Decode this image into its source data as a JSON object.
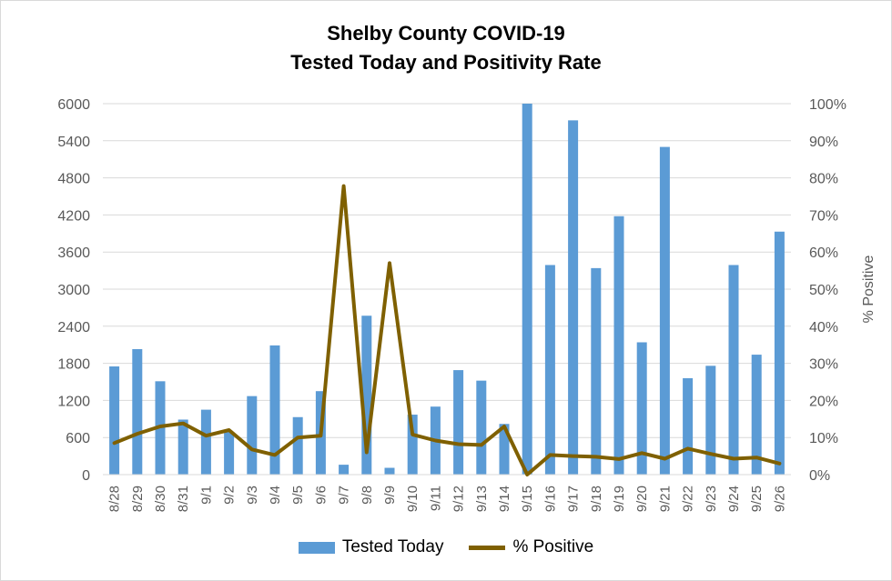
{
  "chart_data": {
    "type": "bar+line",
    "title": "Shelby County COVID-19",
    "subtitle": "Tested Today and Positivity Rate",
    "xlabel": "",
    "ylabel": "",
    "y2label": "% Positive",
    "categories": [
      "8/28",
      "8/29",
      "8/30",
      "8/31",
      "9/1",
      "9/2",
      "9/3",
      "9/4",
      "9/5",
      "9/6",
      "9/7",
      "9/8",
      "9/9",
      "9/10",
      "9/11",
      "9/12",
      "9/13",
      "9/14",
      "9/15",
      "9/16",
      "9/17",
      "9/18",
      "9/19",
      "9/20",
      "9/21",
      "9/22",
      "9/23",
      "9/24",
      "9/25",
      "9/26"
    ],
    "ylim": [
      0,
      6000
    ],
    "yticks": [
      "0",
      "600",
      "1200",
      "1800",
      "2400",
      "3000",
      "3600",
      "4200",
      "4800",
      "5400",
      "6000"
    ],
    "y2lim": [
      0,
      100
    ],
    "y2ticks": [
      "0%",
      "10%",
      "20%",
      "30%",
      "40%",
      "50%",
      "60%",
      "70%",
      "80%",
      "90%",
      "100%"
    ],
    "grid": true,
    "legend_position": "bottom",
    "series": [
      {
        "name": "Tested Today",
        "type": "bar",
        "axis": "left",
        "color": "#5b9bd5",
        "values": [
          1750,
          2030,
          1510,
          890,
          1050,
          690,
          1270,
          2090,
          930,
          1350,
          160,
          2570,
          110,
          970,
          1100,
          1690,
          1520,
          820,
          6000,
          3390,
          5730,
          3340,
          4180,
          2140,
          5300,
          1560,
          1760,
          3390,
          1940,
          3930
        ]
      },
      {
        "name": "% Positive",
        "type": "line",
        "axis": "right",
        "color": "#7f6000",
        "values": [
          8.5,
          11,
          13,
          13.8,
          10.5,
          12,
          6.8,
          5.3,
          10,
          10.5,
          77.8,
          6,
          57,
          10.8,
          9.2,
          8.2,
          8,
          13,
          0,
          5.3,
          5,
          4.8,
          4.2,
          5.8,
          4.3,
          7,
          5.6,
          4.3,
          4.6,
          3
        ]
      }
    ]
  }
}
